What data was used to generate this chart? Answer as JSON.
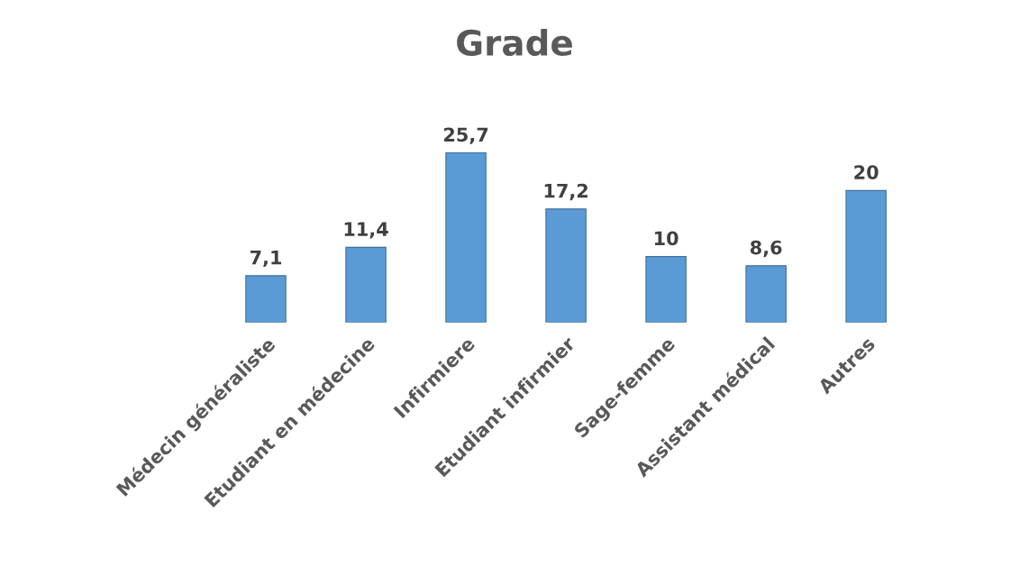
{
  "chart_data": {
    "type": "bar",
    "title": "Grade",
    "categories": [
      "Médecin généraliste",
      "Etudiant en médecine",
      "Infirmiere",
      "Etudiant infirmier",
      "Sage-femme",
      "Assistant médical",
      "Autres"
    ],
    "values": [
      7.1,
      11.4,
      25.7,
      17.2,
      10,
      8.6,
      20
    ],
    "value_labels": [
      "7,1",
      "11,4",
      "25,7",
      "17,2",
      "10",
      "8,6",
      "20"
    ],
    "color": "#5b9bd5",
    "grid": false,
    "legend": false
  }
}
